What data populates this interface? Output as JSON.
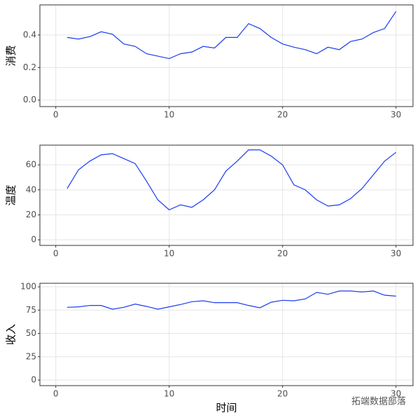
{
  "chart_data": [
    {
      "type": "line",
      "ylabel": "消费",
      "color": "#1a3cf0",
      "grid": true,
      "x": [
        1,
        2,
        3,
        4,
        5,
        6,
        7,
        8,
        9,
        10,
        11,
        12,
        13,
        14,
        15,
        16,
        17,
        18,
        19,
        20,
        21,
        22,
        23,
        24,
        25,
        26,
        27,
        28,
        29,
        30
      ],
      "values": [
        0.385,
        0.375,
        0.39,
        0.42,
        0.405,
        0.345,
        0.33,
        0.285,
        0.27,
        0.255,
        0.285,
        0.295,
        0.33,
        0.32,
        0.385,
        0.385,
        0.47,
        0.44,
        0.385,
        0.345,
        0.325,
        0.31,
        0.285,
        0.325,
        0.31,
        0.36,
        0.375,
        0.415,
        0.44,
        0.545
      ],
      "xlim": [
        -1.4,
        31.5
      ],
      "xticks": [
        0,
        10,
        20,
        30
      ],
      "ylim": [
        -0.04,
        0.585
      ],
      "yticks": [
        {
          "value": 0,
          "label": "0.0"
        },
        0.2,
        0.4
      ]
    },
    {
      "type": "line",
      "ylabel": "温度",
      "color": "#1a3cf0",
      "grid": true,
      "x": [
        1,
        2,
        3,
        4,
        5,
        6,
        7,
        8,
        9,
        10,
        11,
        12,
        13,
        14,
        15,
        16,
        17,
        18,
        19,
        20,
        21,
        22,
        23,
        24,
        25,
        26,
        27,
        28,
        29,
        30
      ],
      "values": [
        41,
        56,
        63,
        68,
        69,
        65,
        61,
        47,
        32,
        24,
        28,
        26,
        32,
        40,
        55,
        63,
        72,
        72,
        67,
        60,
        44,
        40,
        32,
        27,
        28,
        33,
        41,
        52,
        63,
        70
      ],
      "xlim": [
        -1.4,
        31.5
      ],
      "xticks": [
        0,
        10,
        20,
        30
      ],
      "ylim": [
        -4.5,
        75.8
      ],
      "yticks": [
        0,
        20,
        40,
        60
      ]
    },
    {
      "type": "line",
      "ylabel": "收入",
      "xlabel": "时间",
      "watermark": "拓端数据部落",
      "color": "#1a3cf0",
      "grid": true,
      "x": [
        1,
        2,
        3,
        4,
        5,
        6,
        7,
        8,
        9,
        10,
        11,
        12,
        13,
        14,
        15,
        16,
        17,
        18,
        19,
        20,
        21,
        22,
        23,
        24,
        25,
        26,
        27,
        28,
        29,
        30
      ],
      "values": [
        78,
        78.5,
        80,
        80,
        76,
        78,
        81.5,
        79,
        76,
        78.5,
        81,
        84,
        85,
        83,
        83,
        83,
        80,
        77.5,
        83.5,
        85.5,
        85,
        87,
        94,
        92,
        95.5,
        95.5,
        94.5,
        95.5,
        91,
        90
      ],
      "xlim": [
        -1.4,
        31.5
      ],
      "xticks": [
        0,
        10,
        20,
        30
      ],
      "ylim": [
        -6,
        103.8
      ],
      "yticks": [
        0,
        25,
        50,
        75,
        100
      ]
    }
  ]
}
